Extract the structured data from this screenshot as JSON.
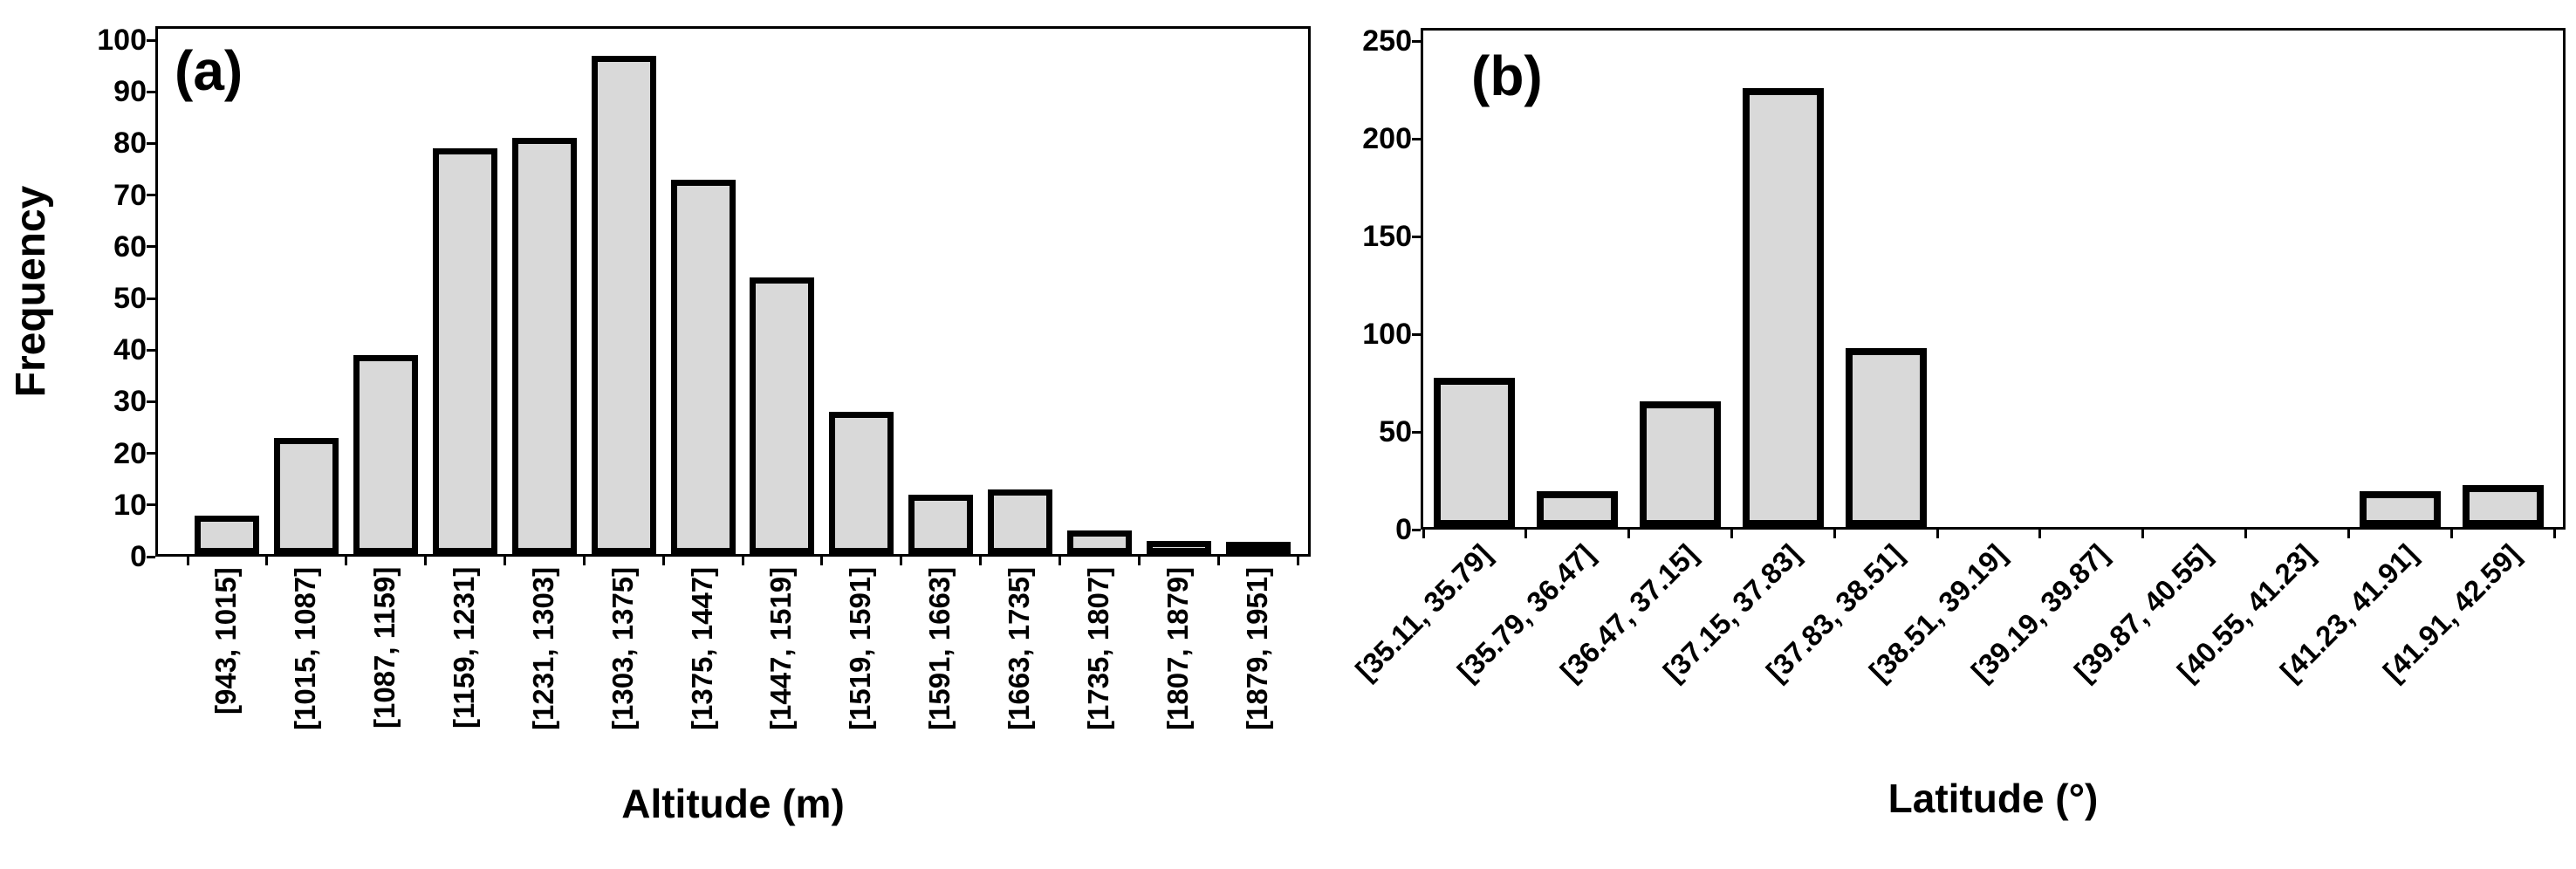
{
  "figure": {
    "background": "#ffffff",
    "bar_fill": "#d9d9d9",
    "bar_border": "#000000",
    "axis_color": "#000000",
    "text_color": "#000000"
  },
  "chart_data": [
    {
      "type": "bar",
      "panel_label": "(a)",
      "title": "",
      "xlabel": "Altitude (m)",
      "ylabel": "Frequency",
      "categories": [
        "[943, 1015]",
        "[1015, 1087]",
        "[1087, 1159]",
        "[1159, 1231]",
        "[1231, 1303]",
        "[1303, 1375]",
        "[1375, 1447]",
        "[1447, 1519]",
        "[1519, 1591]",
        "[1591, 1663]",
        "[1663, 1735]",
        "[1735, 1807]",
        "[1807, 1879]",
        "[1879, 1951]"
      ],
      "values": [
        7,
        22,
        38,
        78,
        80,
        96,
        72,
        53,
        27,
        11,
        12,
        4,
        2,
        1
      ],
      "ylim": [
        0,
        100
      ],
      "yticks": [
        0,
        10,
        20,
        30,
        40,
        50,
        60,
        70,
        80,
        90,
        100
      ],
      "grid": "off",
      "legend": "none",
      "x_tick_rotation_deg": 90
    },
    {
      "type": "bar",
      "panel_label": "(b)",
      "title": "",
      "xlabel": "Latitude (°)",
      "ylabel": "",
      "categories": [
        "[35.11, 35.79]",
        "[35.79, 36.47]",
        "[36.47, 37.15]",
        "[37.15, 37.83]",
        "[37.83, 38.51]",
        "[38.51, 39.19]",
        "[39.19, 39.87]",
        "[39.87, 40.55]",
        "[40.55, 41.23]",
        "[41.23, 41.91]",
        "[41.91, 42.59]"
      ],
      "values": [
        75,
        17,
        63,
        223,
        90,
        0,
        0,
        0,
        0,
        17,
        20
      ],
      "ylim": [
        0,
        250
      ],
      "yticks": [
        0,
        50,
        100,
        150,
        200,
        250
      ],
      "grid": "off",
      "legend": "none",
      "x_tick_rotation_deg": 45
    }
  ]
}
